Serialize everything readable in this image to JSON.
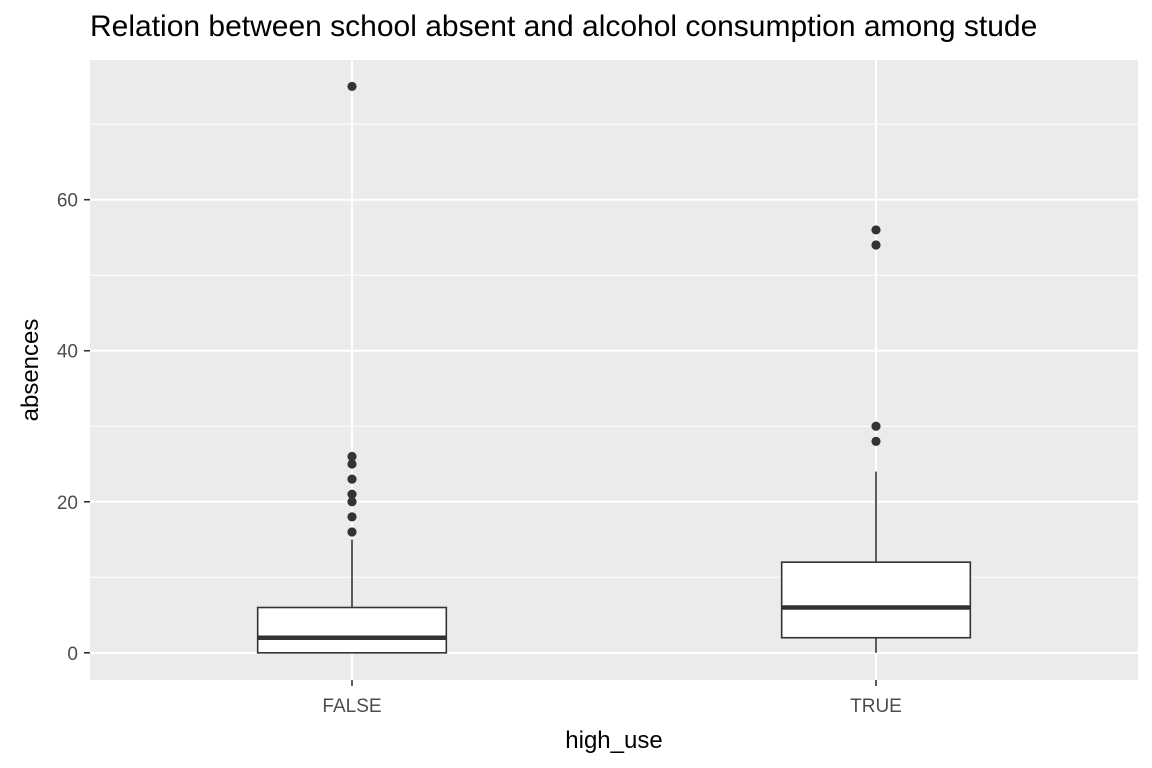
{
  "chart_data": {
    "type": "boxplot",
    "title": "Relation between school absent and alcohol consumption among stude",
    "xlabel": "high_use",
    "ylabel": "absences",
    "categories": [
      "FALSE",
      "TRUE"
    ],
    "ylim": [
      -3.6,
      78.5
    ],
    "y_ticks": [
      0,
      20,
      40,
      60
    ],
    "y_tick_labels": [
      "0",
      "20",
      "40",
      "60"
    ],
    "boxes": [
      {
        "category": "FALSE",
        "min": 0,
        "q1": 0,
        "median": 2,
        "q3": 6,
        "max": 15,
        "outliers": [
          16,
          18,
          20,
          21,
          23,
          25,
          26,
          75
        ]
      },
      {
        "category": "TRUE",
        "min": 0,
        "q1": 2,
        "median": 6,
        "q3": 12,
        "max": 24,
        "outliers": [
          28,
          30,
          54,
          56
        ]
      }
    ],
    "grid": true,
    "colors": {
      "panel_bg": "#ebebeb",
      "grid": "#ffffff",
      "box_fill": "#ffffff",
      "box_line": "#333333",
      "point": "#333333"
    }
  }
}
